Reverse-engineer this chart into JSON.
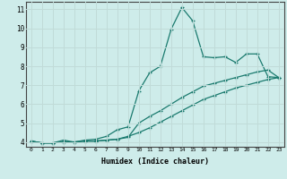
{
  "xlabel": "Humidex (Indice chaleur)",
  "bg_color": "#ceecea",
  "grid_color": "#c0dbd8",
  "line_color": "#1a7a6e",
  "xlim": [
    -0.5,
    23.5
  ],
  "ylim": [
    3.75,
    11.4
  ],
  "xticks": [
    0,
    1,
    2,
    3,
    4,
    5,
    6,
    7,
    8,
    9,
    10,
    11,
    12,
    13,
    14,
    15,
    16,
    17,
    18,
    19,
    20,
    21,
    22,
    23
  ],
  "yticks": [
    4,
    5,
    6,
    7,
    8,
    9,
    10,
    11
  ],
  "line1_x": [
    0,
    1,
    2,
    3,
    4,
    5,
    6,
    7,
    8,
    9,
    10,
    11,
    12,
    13,
    14,
    15,
    16,
    17,
    18,
    19,
    20,
    21,
    22,
    23
  ],
  "line1_y": [
    4.05,
    3.95,
    3.95,
    4.1,
    4.0,
    4.1,
    4.15,
    4.3,
    4.65,
    4.8,
    6.7,
    7.65,
    8.0,
    9.95,
    11.1,
    10.4,
    8.5,
    8.45,
    8.5,
    8.2,
    8.65,
    8.65,
    7.45,
    7.4
  ],
  "line2_x": [
    0,
    1,
    2,
    3,
    4,
    5,
    6,
    7,
    8,
    9,
    10,
    11,
    12,
    13,
    14,
    15,
    16,
    17,
    18,
    19,
    20,
    21,
    22,
    23
  ],
  "line2_y": [
    4.05,
    3.95,
    3.95,
    4.0,
    4.0,
    4.05,
    4.05,
    4.1,
    4.15,
    4.25,
    5.0,
    5.35,
    5.65,
    6.0,
    6.35,
    6.65,
    6.95,
    7.1,
    7.25,
    7.4,
    7.55,
    7.7,
    7.8,
    7.4
  ],
  "line3_x": [
    0,
    1,
    2,
    3,
    4,
    5,
    6,
    7,
    8,
    9,
    10,
    11,
    12,
    13,
    14,
    15,
    16,
    17,
    18,
    19,
    20,
    21,
    22,
    23
  ],
  "line3_y": [
    4.05,
    3.95,
    3.95,
    4.0,
    4.0,
    4.05,
    4.05,
    4.1,
    4.15,
    4.3,
    4.5,
    4.75,
    5.05,
    5.35,
    5.65,
    5.95,
    6.25,
    6.45,
    6.65,
    6.85,
    7.0,
    7.15,
    7.3,
    7.4
  ]
}
